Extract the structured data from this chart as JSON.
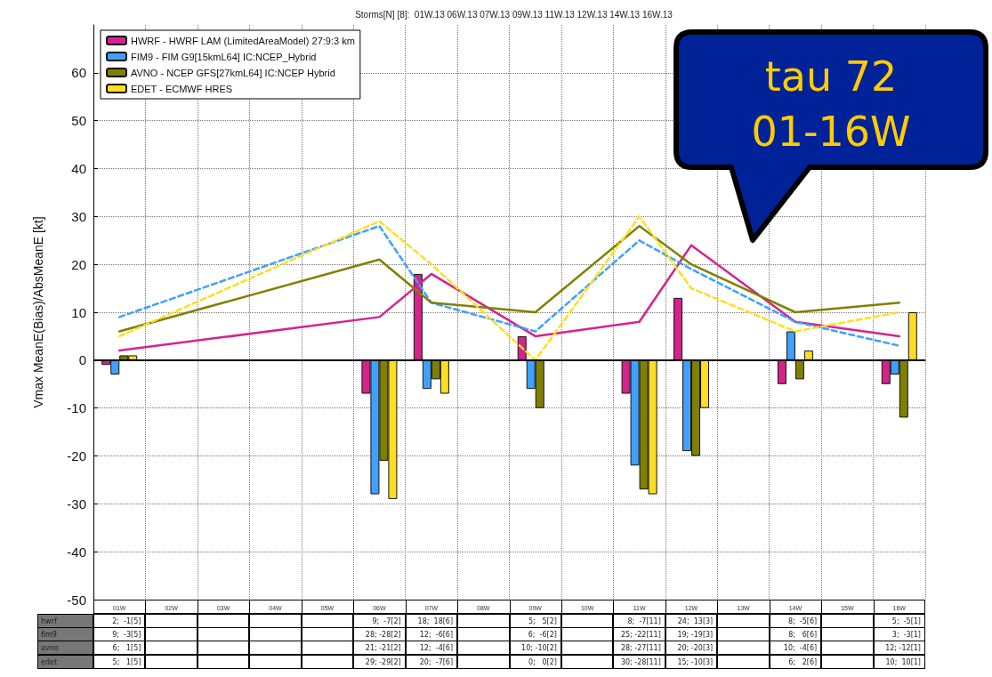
{
  "chart_data": {
    "type": "bar",
    "title": "Storms[N] [8]:  01W.13 06W.13 07W.13 09W.13 11W.13 12W.13 14W.13 16W.13",
    "ylabel": "Vmax MeanE(Bias)/AbsMeanE [kt]",
    "annotations": [
      "tau 72\n01-16W",
      "hwrf",
      "fim9",
      "avno",
      "edet"
    ],
    "categories": [
      "01W",
      "02W",
      "03W",
      "04W",
      "05W",
      "06W",
      "07W",
      "08W",
      "09W",
      "10W",
      "11W",
      "12W",
      "13W",
      "14W",
      "15W",
      "16W"
    ],
    "series": [
      {
        "name": "HWRF - HWRF LAM (LimitedAreaModel) 27:9:3 km",
        "color": "#d4248c",
        "values": [
          -1,
          null,
          null,
          null,
          null,
          -7,
          18,
          null,
          5,
          null,
          -7,
          13,
          null,
          -5,
          null,
          -5
        ],
        "value_labels": [
          "2;  -1[5]",
          null,
          null,
          null,
          null,
          "9;  -7[2]",
          "18;  18[6]",
          null,
          "5;   5[2]",
          null,
          "8;  -7[11]",
          "24;  13[3]",
          null,
          "8;  -5[6]",
          null,
          "5;  -5[1]"
        ]
      },
      {
        "name": "FIM9 - FIM G9[15kmL64] IC:NCEP_Hybrid",
        "color": "#3fa0ff",
        "values": [
          -3,
          null,
          null,
          null,
          null,
          -28,
          -6,
          null,
          -6,
          null,
          -22,
          -19,
          null,
          6,
          null,
          -3
        ],
        "value_labels": [
          "9;  -3[5]",
          null,
          null,
          null,
          null,
          "28; -28[2]",
          "12;  -6[6]",
          null,
          "6;  -6[2]",
          null,
          "25; -22[11]",
          "19; -19[3]",
          null,
          "8;   6[6]",
          null,
          "3;  -3[1]"
        ]
      },
      {
        "name": "AVNO - NCEP GFS[27kmL64] IC:NCEP Hybrid",
        "color": "#808000",
        "values": [
          1,
          null,
          null,
          null,
          null,
          -21,
          -4,
          null,
          -10,
          null,
          -27,
          -20,
          null,
          -4,
          null,
          -12
        ],
        "value_labels": [
          "6;   1[5]",
          null,
          null,
          null,
          null,
          "21; -21[2]",
          "12;  -4[6]",
          null,
          "10; -10[2]",
          null,
          "28; -27[11]",
          "20; -20[3]",
          null,
          "10;  -4[6]",
          null,
          "12; -12[1]"
        ]
      },
      {
        "name": "EDET - ECMWF HRES",
        "color": "#ffdd22",
        "values": [
          1,
          null,
          null,
          null,
          null,
          -29,
          -7,
          null,
          0,
          null,
          -28,
          -10,
          null,
          2,
          null,
          10
        ],
        "value_labels": [
          "5;   1[5]",
          null,
          null,
          null,
          null,
          "29; -29[2]",
          "20;  -7[6]",
          null,
          "0;   0[2]",
          null,
          "30; -28[11]",
          "15; -10[3]",
          null,
          "6;   2[6]",
          null,
          "10;  10[1]"
        ]
      },
      {
        "type": "line",
        "line_style": "solid",
        "color": "#d4248c",
        "values": [
          2,
          null,
          null,
          null,
          null,
          9,
          18,
          null,
          5,
          null,
          8,
          24,
          null,
          8,
          null,
          5
        ]
      },
      {
        "type": "line",
        "line_style": "dashed",
        "color": "#3fa0ff",
        "values": [
          9,
          null,
          null,
          null,
          null,
          28,
          12,
          null,
          6,
          null,
          25,
          19,
          null,
          8,
          null,
          3
        ]
      },
      {
        "type": "line",
        "line_style": "solid",
        "color": "#808000",
        "values": [
          6,
          null,
          null,
          null,
          null,
          21,
          12,
          null,
          10,
          null,
          28,
          20,
          null,
          10,
          null,
          12
        ]
      },
      {
        "type": "line",
        "line_style": "dashed",
        "color": "#ffdd22",
        "values": [
          5,
          null,
          null,
          null,
          null,
          29,
          20,
          null,
          0,
          null,
          30,
          15,
          null,
          6,
          null,
          10
        ]
      }
    ],
    "ylim": [
      -50,
      70
    ],
    "yticks": [
      -50,
      -40,
      -30,
      -20,
      -10,
      0,
      10,
      20,
      30,
      40,
      50,
      60
    ],
    "ref_lines": [
      {
        "axis": "y",
        "value": 0,
        "color": "#000000"
      }
    ],
    "grid": true,
    "legend": "top left"
  }
}
